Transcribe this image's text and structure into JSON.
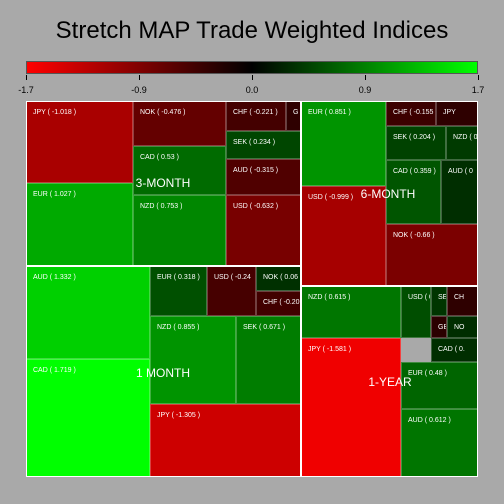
{
  "title": "Stretch MAP Trade Weighted Indices",
  "colors": {
    "negative": "#ff0000",
    "neutral": "#000000",
    "positive": "#00ff00",
    "background": "#a9a9a9",
    "border": "#ffffff"
  },
  "chart_data": {
    "type": "treemap",
    "title": "Stretch MAP Trade Weighted Indices",
    "color_scale": {
      "min": -1.7,
      "max": 1.7,
      "ticks": [
        "-1.7",
        "-0.9",
        "0.0",
        "0.9",
        "1.7"
      ]
    },
    "groups": [
      {
        "name": "3-MONTH",
        "cells": [
          {
            "label": "JPY ( -1.018 )",
            "value": -1.018
          },
          {
            "label": "EUR ( 1.027 )",
            "value": 1.027
          },
          {
            "label": "NOK ( -0.476 )",
            "value": -0.476
          },
          {
            "label": "CAD ( 0.53 )",
            "value": 0.53
          },
          {
            "label": "NZD ( 0.753 )",
            "value": 0.753
          },
          {
            "label": "CHF ( -0.221 )",
            "value": -0.221
          },
          {
            "label": "G",
            "value": -0.05
          },
          {
            "label": "SEK ( 0.234 )",
            "value": 0.234
          },
          {
            "label": "AUD ( -0.315 )",
            "value": -0.315
          },
          {
            "label": "USD ( -0.632 )",
            "value": -0.632
          }
        ]
      },
      {
        "name": "6-MONTH",
        "cells": [
          {
            "label": "EUR ( 0.851 )",
            "value": 0.851
          },
          {
            "label": "USD ( -0.999 )",
            "value": -0.999
          },
          {
            "label": "CHF ( -0.155",
            "value": -0.155
          },
          {
            "label": "JPY",
            "value": -0.05
          },
          {
            "label": "SEK ( 0.204 )",
            "value": 0.204
          },
          {
            "label": "NZD ( 0.1",
            "value": 0.14
          },
          {
            "label": "CAD ( 0.359 )",
            "value": 0.359
          },
          {
            "label": "AUD ( 0",
            "value": 0.05
          },
          {
            "label": "NOK ( -0.66 )",
            "value": -0.66
          }
        ]
      },
      {
        "name": "1 MONTH",
        "cells": [
          {
            "label": "AUD ( 1.332 )",
            "value": 1.332
          },
          {
            "label": "CAD ( 1.719 )",
            "value": 1.719
          },
          {
            "label": "EUR ( 0.318 )",
            "value": 0.318
          },
          {
            "label": "USD ( -0.24",
            "value": -0.24
          },
          {
            "label": "NOK ( 0.06",
            "value": 0.06
          },
          {
            "label": "CHF ( -0.201",
            "value": -0.201
          },
          {
            "label": "NZD ( 0.855 )",
            "value": 0.855
          },
          {
            "label": "SEK ( 0.671 )",
            "value": 0.671
          },
          {
            "label": "JPY ( -1.305 )",
            "value": -1.305
          }
        ]
      },
      {
        "name": "1-YEAR",
        "cells": [
          {
            "label": "NZD ( 0.615 )",
            "value": 0.615
          },
          {
            "label": "USD ( 0.3",
            "value": 0.3
          },
          {
            "label": "SE",
            "value": 0.1
          },
          {
            "label": "CH",
            "value": -0.05
          },
          {
            "label": "GB",
            "value": -0.02
          },
          {
            "label": "NO",
            "value": 0.04
          },
          {
            "label": "CAD ( 0.",
            "value": 0.05
          },
          {
            "label": "JPY ( -1.581 )",
            "value": -1.581
          },
          {
            "label": "EUR ( 0.48 )",
            "value": 0.48
          },
          {
            "label": "AUD ( 0.612 )",
            "value": 0.612
          }
        ]
      }
    ]
  }
}
